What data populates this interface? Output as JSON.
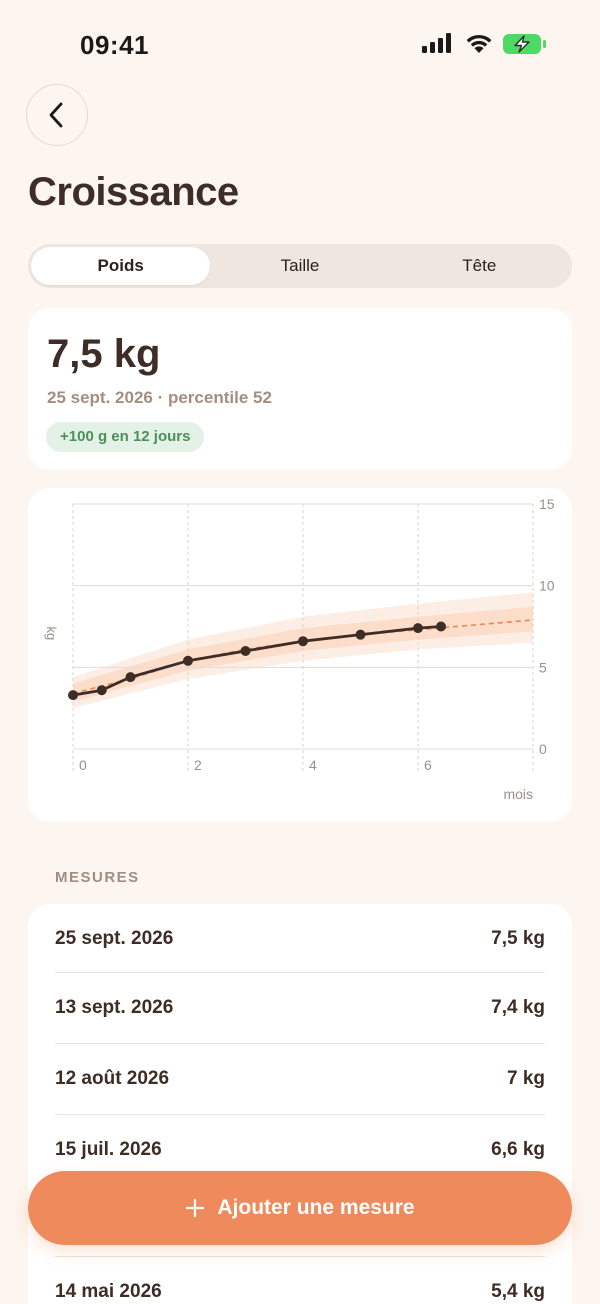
{
  "status_bar": {
    "time": "09:41"
  },
  "header": {
    "title": "Croissance"
  },
  "tabs": [
    {
      "label": "Poids",
      "active": true
    },
    {
      "label": "Taille",
      "active": false
    },
    {
      "label": "Tête",
      "active": false
    }
  ],
  "summary": {
    "weight": "7,5 kg",
    "subtitle": "25 sept. 2026 · percentile 52",
    "badge": "+100 g en 12 jours"
  },
  "chart_data": {
    "type": "line",
    "xlabel": "mois",
    "ylabel": "kg",
    "xlim": [
      0,
      8
    ],
    "ylim": [
      0,
      15
    ],
    "x_ticks": [
      "0",
      "2",
      "4",
      "6"
    ],
    "y_ticks": [
      "0",
      "5",
      "10",
      "15"
    ],
    "series": [
      {
        "points": [
          [
            0,
            3.3
          ],
          [
            0.5,
            3.6
          ],
          [
            1.0,
            4.4
          ],
          [
            2.0,
            5.4
          ],
          [
            3.0,
            6.0
          ],
          [
            4.0,
            6.6
          ],
          [
            5.0,
            7.0
          ],
          [
            6.0,
            7.4
          ],
          [
            6.4,
            7.5
          ]
        ]
      }
    ],
    "reference": {
      "median": [
        [
          0,
          3.4
        ],
        [
          1,
          4.3
        ],
        [
          2,
          5.4
        ],
        [
          3,
          6.1
        ],
        [
          4,
          6.6
        ],
        [
          5,
          7.0
        ],
        [
          6,
          7.3
        ],
        [
          7,
          7.6
        ],
        [
          8,
          7.9
        ]
      ],
      "band_inner": {
        "lower": [
          [
            0,
            2.9
          ],
          [
            2,
            4.8
          ],
          [
            4,
            6.0
          ],
          [
            6,
            6.7
          ],
          [
            8,
            7.2
          ]
        ],
        "upper": [
          [
            0,
            4.0
          ],
          [
            2,
            6.1
          ],
          [
            4,
            7.4
          ],
          [
            6,
            8.1
          ],
          [
            8,
            8.7
          ]
        ]
      },
      "band_outer": {
        "lower": [
          [
            0,
            2.5
          ],
          [
            2,
            4.3
          ],
          [
            4,
            5.4
          ],
          [
            6,
            6.1
          ],
          [
            8,
            6.5
          ]
        ],
        "upper": [
          [
            0,
            4.4
          ],
          [
            2,
            6.7
          ],
          [
            4,
            8.1
          ],
          [
            6,
            8.9
          ],
          [
            8,
            9.6
          ]
        ]
      }
    },
    "grid": true,
    "colors": {
      "line": "#3d2d26",
      "median": "#e8865a",
      "band_inner": "#fbd9c6",
      "band_outer": "#fdebe0"
    }
  },
  "measures": {
    "section_label": "MESURES",
    "items": [
      {
        "date": "25 sept. 2026",
        "value": "7,5 kg"
      },
      {
        "date": "13 sept. 2026",
        "value": "7,4 kg"
      },
      {
        "date": "12 août 2026",
        "value": "7 kg"
      },
      {
        "date": "15 juil. 2026",
        "value": "6,6 kg"
      },
      {
        "date": "",
        "value": ""
      },
      {
        "date": "14 mai 2026",
        "value": "5,4 kg"
      }
    ]
  },
  "fab": {
    "label": "Ajouter une mesure",
    "icon": "plus-icon"
  },
  "colors": {
    "accent": "#ee8a5c",
    "background": "#fdf5ef",
    "text": "#3d2d26",
    "positive": "#4c9159"
  }
}
